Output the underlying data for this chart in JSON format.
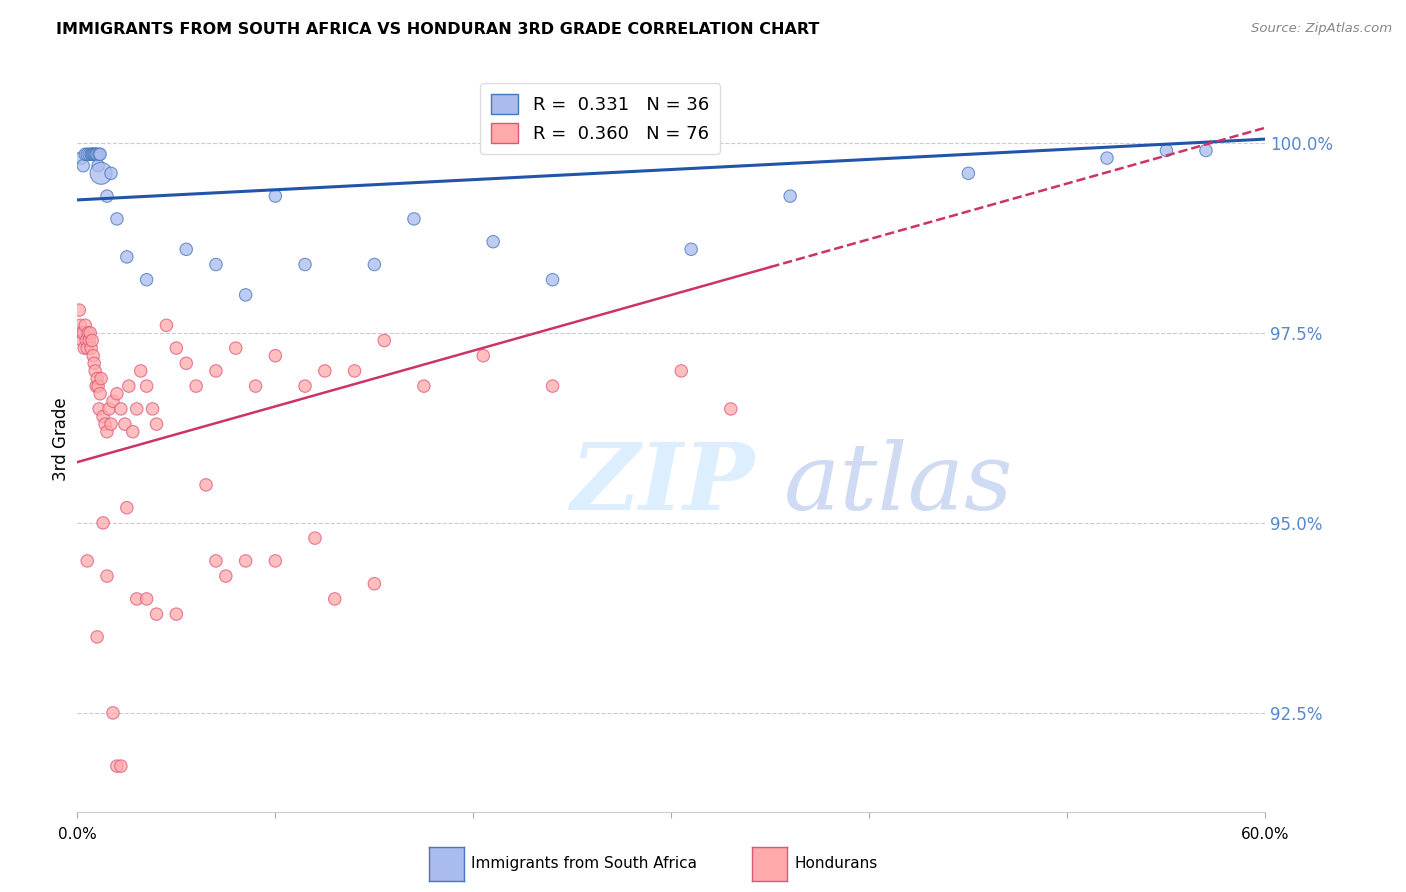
{
  "title": "IMMIGRANTS FROM SOUTH AFRICA VS HONDURAN 3RD GRADE CORRELATION CHART",
  "source": "Source: ZipAtlas.com",
  "ylabel": "3rd Grade",
  "yticks": [
    92.5,
    95.0,
    97.5,
    100.0
  ],
  "ytick_labels": [
    "92.5%",
    "95.0%",
    "97.5%",
    "100.0%"
  ],
  "ymin": 91.2,
  "ymax": 101.0,
  "xmin": 0.0,
  "xmax": 60.0,
  "legend_blue_r": "R =  0.331",
  "legend_blue_n": "N = 36",
  "legend_pink_r": "R =  0.360",
  "legend_pink_n": "N = 76",
  "blue_face": "#AABBEE",
  "blue_edge": "#4477BB",
  "pink_face": "#FFAAAA",
  "pink_edge": "#DD5577",
  "blue_line": "#2255AA",
  "pink_line": "#CC3366",
  "grid_color": "#CCCCCC",
  "right_tick_color": "#5588CC",
  "blue_scatter_x": [
    0.2,
    0.3,
    0.4,
    0.5,
    0.6,
    0.7,
    0.75,
    0.8,
    0.85,
    0.9,
    0.95,
    1.0,
    1.05,
    1.1,
    1.15,
    1.2,
    1.5,
    1.7,
    2.0,
    2.5,
    3.5,
    5.5,
    7.0,
    8.5,
    10.0,
    11.5,
    15.0,
    17.0,
    21.0,
    24.0,
    31.0,
    36.0,
    45.0,
    52.0,
    55.0,
    57.0
  ],
  "blue_scatter_y": [
    99.8,
    99.7,
    99.85,
    99.85,
    99.85,
    99.85,
    99.85,
    99.85,
    99.85,
    99.85,
    99.85,
    99.85,
    99.7,
    99.85,
    99.85,
    99.6,
    99.3,
    99.6,
    99.0,
    98.5,
    98.2,
    98.6,
    98.4,
    98.0,
    99.3,
    98.4,
    98.4,
    99.0,
    98.7,
    98.2,
    98.6,
    99.3,
    99.6,
    99.8,
    99.9,
    99.9
  ],
  "blue_scatter_s": [
    80,
    80,
    80,
    80,
    80,
    80,
    80,
    80,
    80,
    80,
    80,
    80,
    80,
    80,
    80,
    250,
    80,
    80,
    80,
    80,
    80,
    80,
    80,
    80,
    80,
    80,
    80,
    80,
    80,
    80,
    80,
    80,
    80,
    80,
    80,
    80
  ],
  "pink_scatter_x": [
    0.1,
    0.15,
    0.2,
    0.25,
    0.3,
    0.35,
    0.4,
    0.45,
    0.5,
    0.55,
    0.6,
    0.65,
    0.7,
    0.75,
    0.8,
    0.85,
    0.9,
    0.95,
    1.0,
    1.05,
    1.1,
    1.15,
    1.2,
    1.3,
    1.4,
    1.5,
    1.6,
    1.7,
    1.8,
    2.0,
    2.2,
    2.4,
    2.6,
    2.8,
    3.0,
    3.2,
    3.5,
    3.8,
    4.0,
    4.5,
    5.0,
    5.5,
    6.0,
    7.0,
    8.0,
    9.0,
    10.0,
    11.5,
    12.5,
    14.0,
    15.5,
    17.5,
    20.5,
    24.0,
    30.5,
    33.0
  ],
  "pink_scatter_y": [
    97.8,
    97.6,
    97.5,
    97.4,
    97.5,
    97.3,
    97.6,
    97.4,
    97.3,
    97.5,
    97.4,
    97.5,
    97.3,
    97.4,
    97.2,
    97.1,
    97.0,
    96.8,
    96.9,
    96.8,
    96.5,
    96.7,
    96.9,
    96.4,
    96.3,
    96.2,
    96.5,
    96.3,
    96.6,
    96.7,
    96.5,
    96.3,
    96.8,
    96.2,
    96.5,
    97.0,
    96.8,
    96.5,
    96.3,
    97.6,
    97.3,
    97.1,
    96.8,
    97.0,
    97.3,
    96.8,
    97.2,
    96.8,
    97.0,
    97.0,
    97.4,
    96.8,
    97.2,
    96.8,
    97.0,
    96.5
  ],
  "pink_scatter_x2": [
    0.5,
    1.0,
    1.5,
    2.0,
    3.0,
    5.0,
    7.0,
    10.0,
    13.0,
    15.0,
    12.0,
    7.5,
    8.5,
    2.5,
    3.5,
    4.0,
    6.5,
    1.3,
    1.8,
    2.2
  ],
  "pink_scatter_y2": [
    94.5,
    93.5,
    94.3,
    91.8,
    94.0,
    93.8,
    94.5,
    94.5,
    94.0,
    94.2,
    94.8,
    94.3,
    94.5,
    95.2,
    94.0,
    93.8,
    95.5,
    95.0,
    92.5,
    91.8
  ],
  "blue_trend_x": [
    0.0,
    60.0
  ],
  "blue_trend_y": [
    99.25,
    100.05
  ],
  "pink_trend_x": [
    0.0,
    60.0
  ],
  "pink_trend_y": [
    95.8,
    100.2
  ],
  "pink_solid_end": 35.0,
  "xtick_positions": [
    0.0,
    10.0,
    20.0,
    30.0,
    40.0,
    50.0,
    60.0
  ]
}
